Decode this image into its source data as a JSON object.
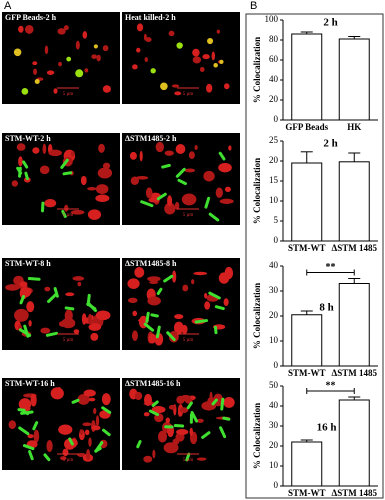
{
  "panel_a": {
    "label": "A",
    "images": [
      {
        "label": "GFP Beads-2 h",
        "scale": "5 µm"
      },
      {
        "label": "Heat killed-2 h",
        "scale": "5 µm"
      },
      {
        "label": "STM-WT-2 h",
        "scale": "5 µm"
      },
      {
        "label": "ΔSTM1485-2 h",
        "scale": "5 µm"
      },
      {
        "label": "STM-WT-8 h",
        "scale": "5 µm"
      },
      {
        "label": "ΔSTM1485-8 h",
        "scale": "5 µm"
      },
      {
        "label": "STM-WT-16 h",
        "scale": "5 µm"
      },
      {
        "label": "ΔSTM1485-16 h",
        "scale": "5 µm"
      }
    ]
  },
  "panel_b": {
    "label": "B"
  },
  "chart_data": [
    {
      "type": "bar",
      "title": "2 h",
      "y_label": "% Colocalization",
      "categories": [
        "GFP Beads",
        "HK"
      ],
      "values": [
        86,
        81
      ],
      "errors": [
        2,
        2.5
      ],
      "color": "#ffffff",
      "ylim": [
        0,
        100
      ],
      "yticks": [
        0,
        20,
        40,
        60,
        80,
        100
      ]
    },
    {
      "type": "bar",
      "title": "2 h",
      "y_label": "% Colocalization",
      "categories": [
        "STM-WT",
        "ΔSTM 1485"
      ],
      "values": [
        19.5,
        19.8
      ],
      "errors": [
        2.8,
        2.2
      ],
      "color": "#ffffff",
      "ylim": [
        0,
        25
      ],
      "yticks": [
        0,
        5,
        10,
        15,
        20,
        25
      ]
    },
    {
      "type": "bar",
      "title": "8 h",
      "y_label": "% Colocalization",
      "categories": [
        "STM-WT",
        "ΔSTM 1485"
      ],
      "values": [
        20.5,
        33
      ],
      "errors": [
        1.5,
        2
      ],
      "color": "#ffffff",
      "ylim": [
        0,
        40
      ],
      "yticks": [
        0,
        10,
        20,
        30,
        40
      ],
      "significance": "**"
    },
    {
      "type": "bar",
      "title": "16 h",
      "y_label": "% Colocalization",
      "categories": [
        "STM-WT",
        "ΔSTM 1485"
      ],
      "values": [
        22,
        43
      ],
      "errors": [
        1,
        1.5
      ],
      "color": "#ffffff",
      "ylim": [
        0,
        50
      ],
      "yticks": [
        0,
        10,
        20,
        30,
        40,
        50
      ],
      "significance": "**"
    }
  ]
}
